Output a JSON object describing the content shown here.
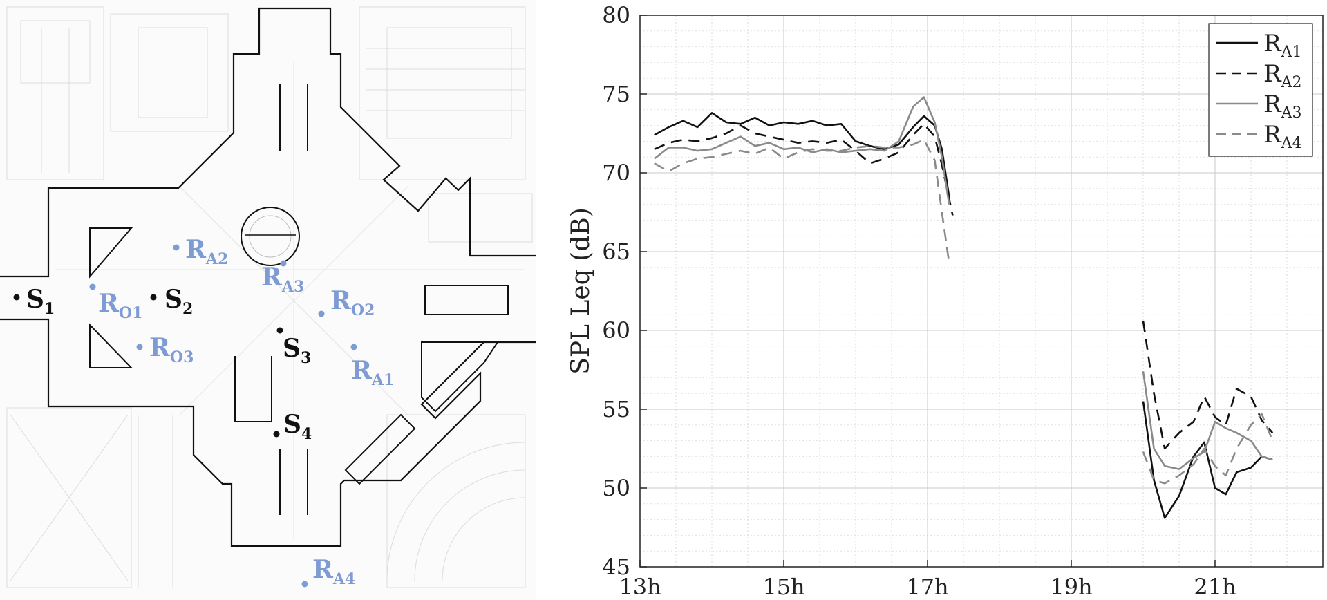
{
  "floor_plan": {
    "sources": [
      {
        "name": "S",
        "sub": "1"
      },
      {
        "name": "S",
        "sub": "2"
      },
      {
        "name": "S",
        "sub": "3"
      },
      {
        "name": "S",
        "sub": "4"
      }
    ],
    "receivers": [
      {
        "name": "R",
        "sub": "A1"
      },
      {
        "name": "R",
        "sub": "A2"
      },
      {
        "name": "R",
        "sub": "A3"
      },
      {
        "name": "R",
        "sub": "A4"
      },
      {
        "name": "R",
        "sub": "O1"
      },
      {
        "name": "R",
        "sub": "O2"
      },
      {
        "name": "R",
        "sub": "O3"
      }
    ],
    "colors": {
      "source": "#111111",
      "receiver": "#7f9bd4",
      "outline": "#111111",
      "background_lines": "#d8d8d8"
    }
  },
  "chart_data": {
    "type": "line",
    "title": "",
    "xlabel": "",
    "ylabel": "SPL Leq (dB)",
    "xlim": [
      13,
      22.5
    ],
    "ylim": [
      45,
      80
    ],
    "xticks": [
      13,
      15,
      17,
      19,
      21
    ],
    "xtick_labels": [
      "13h",
      "15h",
      "17h",
      "19h",
      "21h"
    ],
    "yticks": [
      45,
      50,
      55,
      60,
      65,
      70,
      75,
      80
    ],
    "ytick_labels": [
      "45",
      "50",
      "55",
      "60",
      "65",
      "70",
      "75",
      "80"
    ],
    "grid": true,
    "legend_position": "top-right",
    "series": [
      {
        "name": "R",
        "sub": "A1",
        "color": "#111111",
        "dash": "solid",
        "segments": [
          [
            [
              13.2,
              72.4
            ],
            [
              13.4,
              72.9
            ],
            [
              13.6,
              73.3
            ],
            [
              13.8,
              72.9
            ],
            [
              14.0,
              73.8
            ],
            [
              14.2,
              73.2
            ],
            [
              14.4,
              73.1
            ],
            [
              14.6,
              73.5
            ],
            [
              14.8,
              73.0
            ],
            [
              15.0,
              73.2
            ],
            [
              15.2,
              73.1
            ],
            [
              15.4,
              73.3
            ],
            [
              15.6,
              73.0
            ],
            [
              15.8,
              73.1
            ],
            [
              16.0,
              72.0
            ],
            [
              16.2,
              71.7
            ],
            [
              16.4,
              71.5
            ],
            [
              16.6,
              71.8
            ],
            [
              16.8,
              72.9
            ],
            [
              16.95,
              73.6
            ],
            [
              17.1,
              73.0
            ],
            [
              17.2,
              71.5
            ],
            [
              17.3,
              68.5
            ]
          ],
          [
            [
              20.0,
              55.5
            ],
            [
              20.15,
              50.5
            ],
            [
              20.3,
              48.1
            ],
            [
              20.5,
              49.5
            ],
            [
              20.7,
              52.0
            ],
            [
              20.85,
              52.9
            ],
            [
              21.0,
              50.0
            ],
            [
              21.15,
              49.6
            ],
            [
              21.3,
              51.0
            ],
            [
              21.5,
              51.3
            ],
            [
              21.65,
              52.0
            ],
            [
              21.8,
              51.8
            ]
          ]
        ]
      },
      {
        "name": "R",
        "sub": "A2",
        "color": "#111111",
        "dash": "dashed",
        "segments": [
          [
            [
              13.2,
              71.5
            ],
            [
              13.4,
              71.9
            ],
            [
              13.6,
              72.1
            ],
            [
              13.8,
              72.0
            ],
            [
              14.0,
              72.2
            ],
            [
              14.2,
              72.5
            ],
            [
              14.4,
              73.0
            ],
            [
              14.6,
              72.5
            ],
            [
              14.8,
              72.3
            ],
            [
              15.0,
              72.1
            ],
            [
              15.2,
              71.9
            ],
            [
              15.4,
              72.0
            ],
            [
              15.6,
              71.9
            ],
            [
              15.8,
              72.1
            ],
            [
              16.0,
              71.4
            ],
            [
              16.2,
              70.6
            ],
            [
              16.4,
              70.9
            ],
            [
              16.6,
              71.3
            ],
            [
              16.8,
              72.4
            ],
            [
              16.95,
              73.1
            ],
            [
              17.1,
              72.3
            ],
            [
              17.2,
              70.5
            ],
            [
              17.35,
              67.3
            ]
          ],
          [
            [
              20.0,
              60.6
            ],
            [
              20.15,
              56.0
            ],
            [
              20.3,
              52.5
            ],
            [
              20.5,
              53.5
            ],
            [
              20.7,
              54.2
            ],
            [
              20.85,
              55.8
            ],
            [
              21.0,
              54.5
            ],
            [
              21.15,
              54.0
            ],
            [
              21.3,
              56.3
            ],
            [
              21.5,
              55.8
            ],
            [
              21.65,
              54.3
            ],
            [
              21.8,
              53.5
            ]
          ]
        ]
      },
      {
        "name": "R",
        "sub": "A3",
        "color": "#8a8a8a",
        "dash": "solid",
        "segments": [
          [
            [
              13.2,
              70.9
            ],
            [
              13.4,
              71.6
            ],
            [
              13.6,
              71.6
            ],
            [
              13.8,
              71.4
            ],
            [
              14.0,
              71.5
            ],
            [
              14.2,
              71.9
            ],
            [
              14.4,
              72.3
            ],
            [
              14.6,
              71.7
            ],
            [
              14.8,
              71.9
            ],
            [
              15.0,
              71.5
            ],
            [
              15.2,
              71.6
            ],
            [
              15.4,
              71.3
            ],
            [
              15.6,
              71.5
            ],
            [
              15.8,
              71.3
            ],
            [
              16.0,
              71.4
            ],
            [
              16.2,
              71.5
            ],
            [
              16.4,
              71.4
            ],
            [
              16.6,
              72.0
            ],
            [
              16.8,
              74.2
            ],
            [
              16.95,
              74.8
            ],
            [
              17.1,
              73.2
            ],
            [
              17.2,
              71.0
            ],
            [
              17.3,
              68.0
            ]
          ],
          [
            [
              20.0,
              57.4
            ],
            [
              20.15,
              52.5
            ],
            [
              20.3,
              51.4
            ],
            [
              20.5,
              51.2
            ],
            [
              20.7,
              51.9
            ],
            [
              20.85,
              52.3
            ],
            [
              21.0,
              54.2
            ],
            [
              21.15,
              53.8
            ],
            [
              21.3,
              53.5
            ],
            [
              21.5,
              53.0
            ],
            [
              21.65,
              52.0
            ],
            [
              21.8,
              51.8
            ]
          ]
        ]
      },
      {
        "name": "R",
        "sub": "A4",
        "color": "#8a8a8a",
        "dash": "dashed",
        "segments": [
          [
            [
              13.2,
              70.6
            ],
            [
              13.4,
              70.1
            ],
            [
              13.6,
              70.6
            ],
            [
              13.8,
              70.9
            ],
            [
              14.0,
              71.0
            ],
            [
              14.2,
              71.2
            ],
            [
              14.4,
              71.4
            ],
            [
              14.6,
              71.2
            ],
            [
              14.8,
              71.6
            ],
            [
              15.0,
              70.9
            ],
            [
              15.2,
              71.3
            ],
            [
              15.4,
              71.5
            ],
            [
              15.6,
              71.4
            ],
            [
              15.8,
              71.4
            ],
            [
              16.0,
              71.6
            ],
            [
              16.2,
              71.7
            ],
            [
              16.4,
              71.6
            ],
            [
              16.6,
              71.6
            ],
            [
              16.8,
              71.8
            ],
            [
              16.95,
              72.1
            ],
            [
              17.1,
              70.8
            ],
            [
              17.2,
              67.5
            ],
            [
              17.3,
              64.3
            ]
          ],
          [
            [
              20.0,
              52.3
            ],
            [
              20.15,
              50.5
            ],
            [
              20.3,
              50.3
            ],
            [
              20.5,
              50.8
            ],
            [
              20.7,
              51.5
            ],
            [
              20.85,
              52.5
            ],
            [
              21.0,
              51.4
            ],
            [
              21.15,
              50.8
            ],
            [
              21.3,
              52.5
            ],
            [
              21.5,
              54.0
            ],
            [
              21.65,
              54.7
            ],
            [
              21.8,
              53.0
            ]
          ]
        ]
      }
    ]
  }
}
